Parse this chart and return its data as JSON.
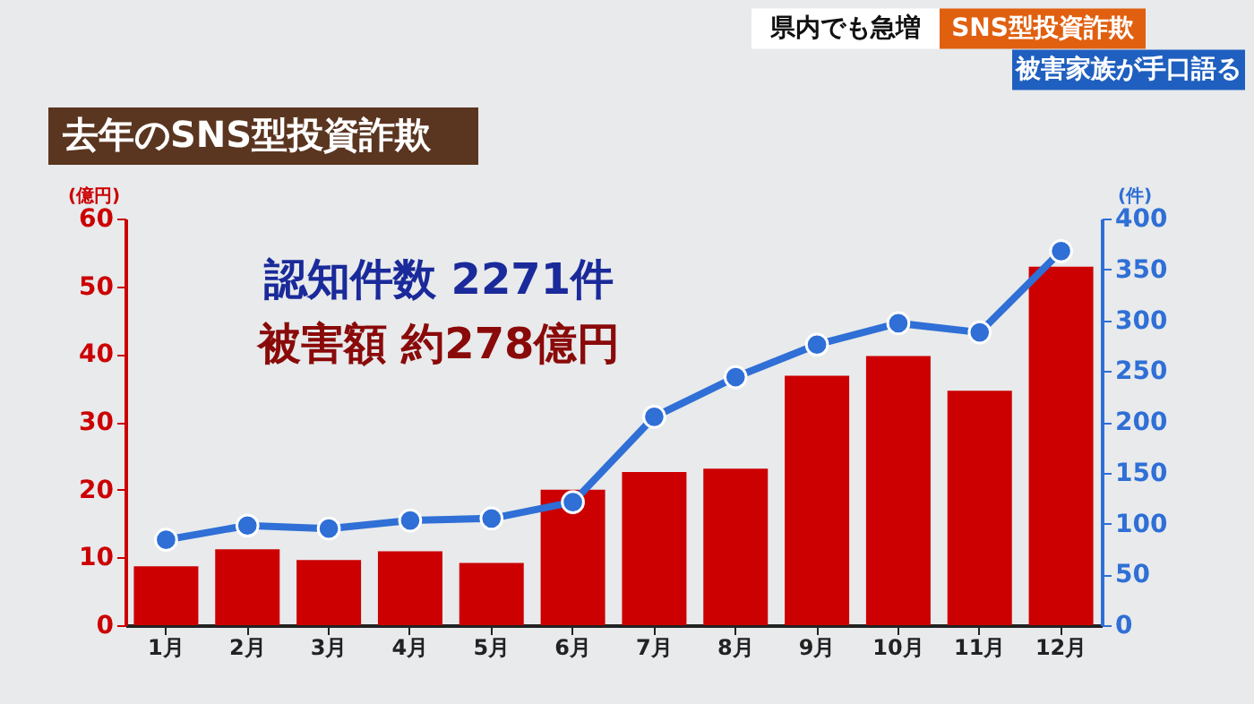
{
  "chart_data": {
    "type": "bar",
    "title": "去年のSNS型投資詐欺",
    "ylabel": "(億円)",
    "y2label": "(件)",
    "categories": [
      "1月",
      "2月",
      "3月",
      "4月",
      "5月",
      "6月",
      "7月",
      "8月",
      "9月",
      "10月",
      "11月",
      "12月"
    ],
    "series": [
      {
        "color": "#cc0000",
        "values": [
          8.7,
          11.2,
          9.6,
          10.9,
          9.2,
          20.0,
          22.6,
          23.1,
          36.8,
          39.7,
          34.6,
          52.9
        ]
      },
      {
        "type": "line",
        "axis": "y2",
        "color": "#2f6fd6",
        "marker": "circle",
        "values": [
          84,
          98,
          95,
          103,
          105,
          121,
          205,
          244,
          276,
          297,
          288,
          368
        ]
      }
    ],
    "ylim": [
      0,
      60
    ],
    "yticks": [
      0,
      10,
      20,
      30,
      40,
      50,
      60
    ],
    "y2lim": [
      0,
      400
    ],
    "y2ticks": [
      0,
      50,
      100,
      150,
      200,
      250,
      300,
      350,
      400
    ],
    "grid": false,
    "annotations": [
      "県内でも急増",
      "SNS型投資詐欺",
      "被害家族が手口語る",
      "認知件数 2271件",
      "被害額 約278億円"
    ]
  }
}
